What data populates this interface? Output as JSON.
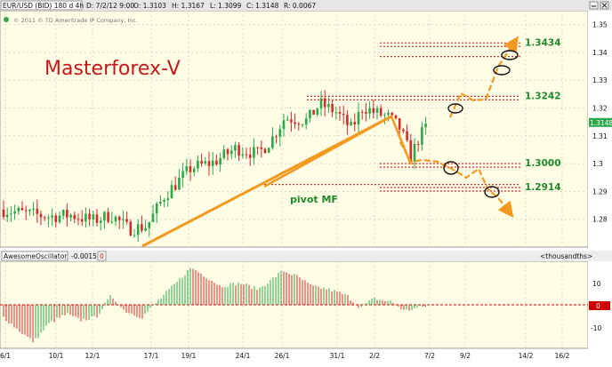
{
  "header": {
    "symbol": "EUR/USD (BID) 180 d 4h",
    "date": "D: 7/2/12 9:00",
    "open": "O: 1.3103",
    "high": "H: 1.3167",
    "low": "L: 1.3099",
    "close": "C: 1.3148",
    "range": "R: 0.0067",
    "copyright": "© 2011 © TD Ameritrade IP Company, Inc."
  },
  "annotations": {
    "brand": "Masterforex-V",
    "pivot_label": "pivot MF"
  },
  "oscillator": {
    "name": "AwesomeOscillator",
    "value": "-0.0015",
    "zero": "0",
    "units": "<thousandths>",
    "ticks": [
      "10",
      "0",
      "-10"
    ]
  },
  "chart_data": [
    {
      "type": "candlestick",
      "ylim": [
        1.27,
        1.355
      ],
      "y_ticks": [
        1.28,
        1.29,
        1.3,
        1.31,
        1.32,
        1.33,
        1.34,
        1.35
      ],
      "y_tick_labels": [
        "1.28",
        "1.29",
        "1.3",
        "1.31",
        "1.32",
        "1.33",
        "1.34",
        "1.35"
      ],
      "last_price": 1.3148,
      "last_price_label": "1.3148",
      "x_tick_labels": [
        "6/1",
        "10/1",
        "12/1",
        "17/1",
        "19/1",
        "24/1",
        "26/1",
        "31/1",
        "2/2",
        "7/2",
        "9/2",
        "14/2",
        "16/2"
      ],
      "levels": [
        {
          "value": 1.3434,
          "label": "1.3434"
        },
        {
          "value": 1.3242,
          "label": "1.3242"
        },
        {
          "value": 1.3,
          "label": "1.3000"
        },
        {
          "value": 1.2914,
          "label": "1.2914"
        }
      ],
      "colors": {
        "up": "#2aa84a",
        "down": "#d42a2a",
        "trend": "#f3991f",
        "level_label": "#1f8a2a",
        "brand": "#c41919"
      }
    },
    {
      "type": "bar",
      "name": "AwesomeOscillator",
      "ylim": [
        -14,
        14
      ],
      "last_value": -0.0015
    }
  ]
}
